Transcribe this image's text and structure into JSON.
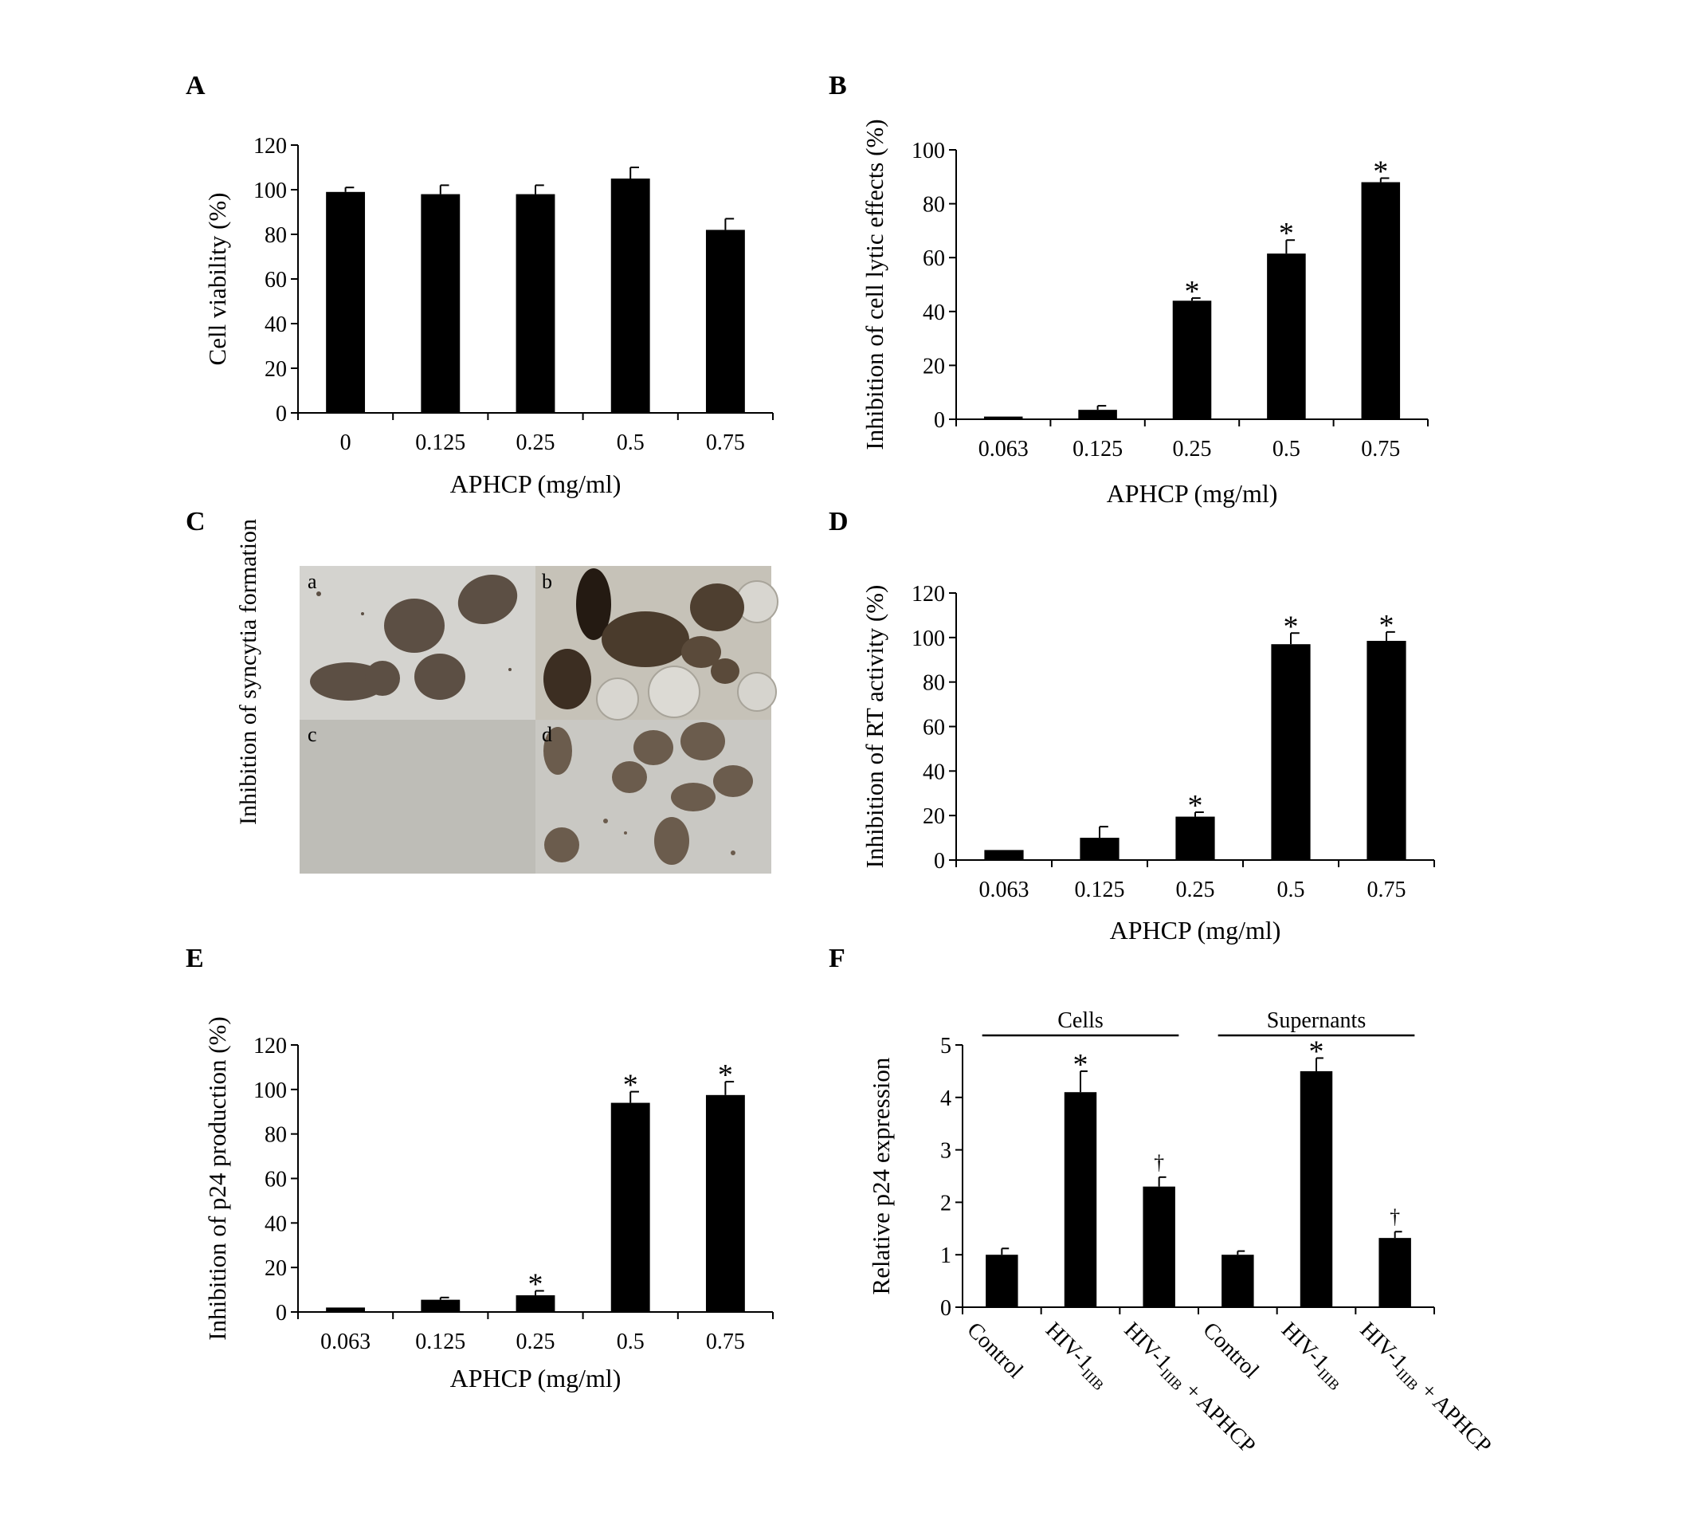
{
  "figure": {
    "panel_letters": [
      "A",
      "B",
      "C",
      "D",
      "E",
      "F"
    ],
    "micrograph": {
      "ylabel": "Inhibition of syncytia formation",
      "subpanels": [
        {
          "id": "a",
          "label": "a",
          "description": "compact cell clusters"
        },
        {
          "id": "b",
          "label": "b",
          "description": "dark syncytia with large round bubbles"
        },
        {
          "id": "c",
          "label": "c",
          "description": "empty gray field"
        },
        {
          "id": "d",
          "label": "d",
          "description": "small scattered cell clusters"
        }
      ]
    },
    "colors": {
      "bar": "#000000",
      "axis": "#000000",
      "background": "#ffffff"
    }
  },
  "chart_data": [
    {
      "panel": "A",
      "type": "bar",
      "title": "",
      "xlabel": "APHCP (mg/ml)",
      "ylabel": "Cell viability (%)",
      "categories": [
        "0",
        "0.125",
        "0.25",
        "0.5",
        "0.75"
      ],
      "values": [
        99,
        98,
        98,
        105,
        82
      ],
      "errors": [
        2,
        4,
        4,
        5,
        5
      ],
      "markers": [
        "",
        "",
        "",
        "",
        ""
      ],
      "ylim": [
        0,
        120
      ],
      "yticks": [
        0,
        20,
        40,
        60,
        80,
        100,
        120
      ],
      "grid": false
    },
    {
      "panel": "B",
      "type": "bar",
      "title": "",
      "xlabel": "APHCP (mg/ml)",
      "ylabel": "Inhibition of cell lytic effects (%)",
      "categories": [
        "0.063",
        "0.125",
        "0.25",
        "0.5",
        "0.75"
      ],
      "values": [
        1,
        3.5,
        44,
        61.5,
        88
      ],
      "errors": [
        0,
        1.5,
        1,
        5,
        1.5
      ],
      "markers": [
        "",
        "",
        "*",
        "*",
        "*"
      ],
      "ylim": [
        0,
        100
      ],
      "yticks": [
        0,
        20,
        40,
        60,
        80,
        100
      ],
      "grid": false
    },
    {
      "panel": "D",
      "type": "bar",
      "title": "",
      "xlabel": "APHCP (mg/ml)",
      "ylabel": "Inhibition of RT activity (%)",
      "categories": [
        "0.063",
        "0.125",
        "0.25",
        "0.5",
        "0.75"
      ],
      "values": [
        4.5,
        10,
        19.5,
        97,
        98.5
      ],
      "errors": [
        0,
        5,
        2,
        5,
        4
      ],
      "markers": [
        "",
        "",
        "*",
        "*",
        "*"
      ],
      "ylim": [
        0,
        120
      ],
      "yticks": [
        0,
        20,
        40,
        60,
        80,
        100,
        120
      ],
      "grid": false
    },
    {
      "panel": "E",
      "type": "bar",
      "title": "",
      "xlabel": "APHCP (mg/ml)",
      "ylabel": "Inhibition of p24 production (%)",
      "categories": [
        "0.063",
        "0.125",
        "0.25",
        "0.5",
        "0.75"
      ],
      "values": [
        2,
        5.5,
        7.5,
        94,
        97.5
      ],
      "errors": [
        0,
        1,
        2,
        5,
        6
      ],
      "markers": [
        "",
        "",
        "*",
        "*",
        "*"
      ],
      "ylim": [
        0,
        120
      ],
      "yticks": [
        0,
        20,
        40,
        60,
        80,
        100,
        120
      ],
      "grid": false
    },
    {
      "panel": "F",
      "type": "bar",
      "title": "",
      "xlabel": "",
      "ylabel": "Relative p24 expression",
      "categories": [
        "Control",
        "HIV-1IIIB",
        "HIV-1IIIB + APHCP",
        "Control",
        "HIV-1IIIB",
        "HIV-1IIIB + APHCP"
      ],
      "values": [
        1,
        4.1,
        2.3,
        1,
        4.5,
        1.32
      ],
      "errors": [
        0.12,
        0.4,
        0.18,
        0.07,
        0.25,
        0.12
      ],
      "markers": [
        "",
        "*",
        "†",
        "",
        "*",
        "†"
      ],
      "groups": [
        {
          "label": "Cells",
          "categories": [
            0,
            1,
            2
          ]
        },
        {
          "label": "Supernants",
          "categories": [
            3,
            4,
            5
          ]
        }
      ],
      "ylim": [
        0,
        5
      ],
      "yticks": [
        0,
        1,
        2,
        3,
        4,
        5
      ],
      "grid": false
    }
  ]
}
